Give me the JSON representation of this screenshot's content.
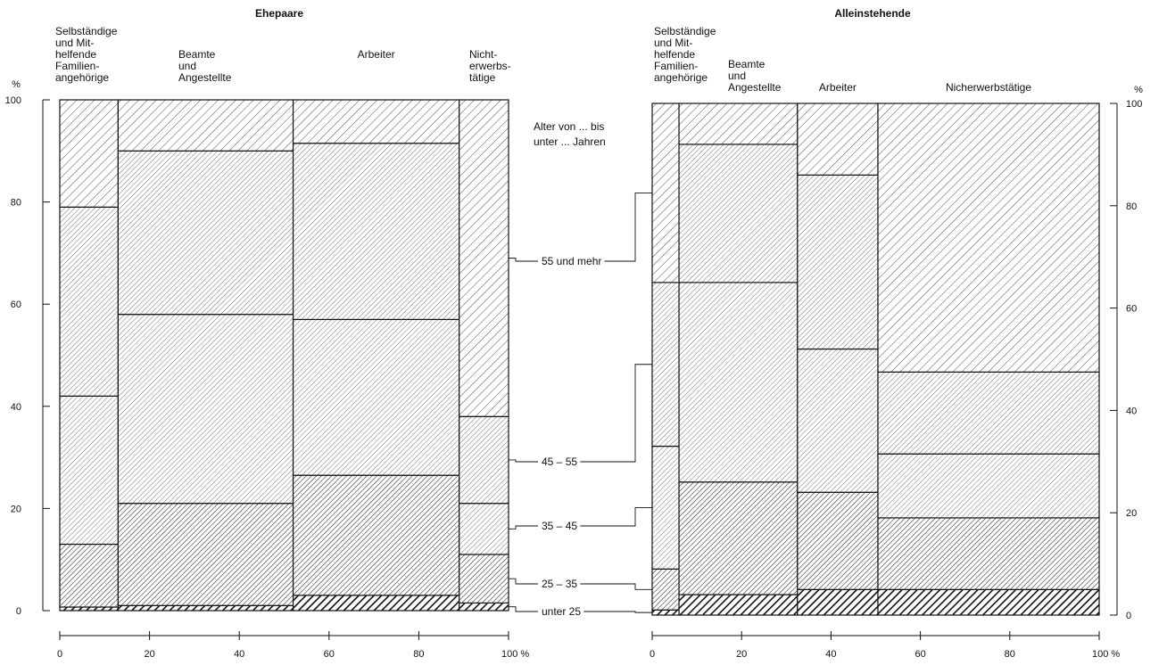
{
  "chart_data": [
    {
      "type": "mekko",
      "title": "Ehepaare",
      "ylabel": "%",
      "xlabel": "%",
      "x_ticks": [
        "0",
        "20",
        "40",
        "60",
        "80",
        "100 %"
      ],
      "y_ticks": [
        "0",
        "20",
        "40",
        "60",
        "80",
        "100"
      ],
      "ylim": [
        0,
        100
      ],
      "xlim": [
        0,
        100
      ],
      "legend_title": [
        "Alter von ... bis",
        "unter ... Jahren"
      ],
      "age_groups": [
        "unter 25",
        "25 – 35",
        "35 – 45",
        "45 – 55",
        "55 und mehr"
      ],
      "columns": [
        {
          "label_lines": [
            "Selbständige",
            "und Mit-",
            "helfende",
            "Familien-",
            "angehörige"
          ],
          "width_pct": 13,
          "stack_tops": [
            0.7,
            13,
            42,
            79,
            100
          ]
        },
        {
          "label_lines": [
            "Beamte",
            "und",
            "Angestellte"
          ],
          "width_pct": 39,
          "stack_tops": [
            1,
            21,
            58,
            90,
            100
          ]
        },
        {
          "label_lines": [
            "Arbeiter"
          ],
          "width_pct": 37,
          "stack_tops": [
            3,
            26.5,
            57,
            91.5,
            100
          ]
        },
        {
          "label_lines": [
            "Nicht-",
            "erwerbs-",
            "tätige"
          ],
          "width_pct": 11,
          "stack_tops": [
            1.5,
            11,
            21,
            38,
            100
          ]
        }
      ]
    },
    {
      "type": "mekko",
      "title": "Alleinstehende",
      "ylabel": "%",
      "xlabel": "%",
      "x_ticks": [
        "0",
        "20",
        "40",
        "60",
        "80",
        "100 %"
      ],
      "y_ticks": [
        "0",
        "20",
        "40",
        "60",
        "80",
        "100"
      ],
      "ylim": [
        0,
        100
      ],
      "xlim": [
        0,
        100
      ],
      "age_groups": [
        "unter 25",
        "25 – 35",
        "35 – 45",
        "45 – 55",
        "55 und mehr"
      ],
      "columns": [
        {
          "label_lines": [
            "Selbständige",
            "und Mit-",
            "helfende",
            "Familien-",
            "angehörige"
          ],
          "width_pct": 6,
          "stack_tops": [
            1,
            9,
            33,
            65,
            100
          ]
        },
        {
          "label_lines": [
            "Beamte",
            "und",
            "Angestellte"
          ],
          "width_pct": 26.5,
          "stack_tops": [
            4,
            26,
            65,
            92,
            100
          ]
        },
        {
          "label_lines": [
            "Arbeiter"
          ],
          "width_pct": 18,
          "stack_tops": [
            5,
            24,
            52,
            86,
            100
          ]
        },
        {
          "label_lines": [
            "Nicherwerbstätige"
          ],
          "width_pct": 49.5,
          "stack_tops": [
            5,
            19,
            31.5,
            47.5,
            100
          ]
        }
      ]
    }
  ]
}
